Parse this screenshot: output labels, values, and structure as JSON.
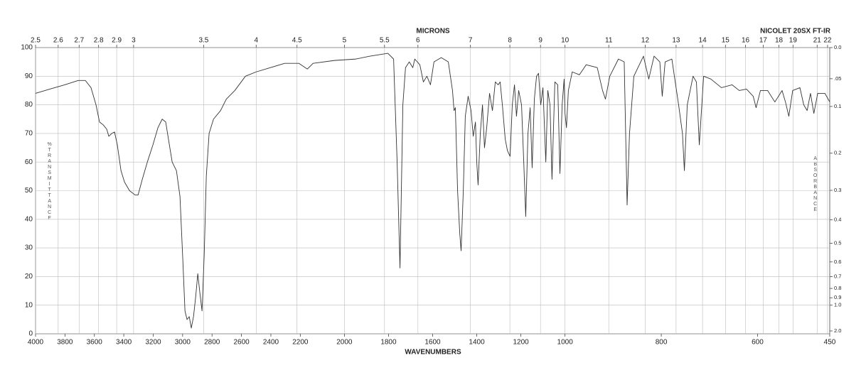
{
  "chart_data": {
    "type": "line",
    "top_label": "MICRONS",
    "x_label": "WAVENUMBERS",
    "instrument": "NICOLET 20SX FT-IR",
    "y_label": "%TRANSMITTANCE",
    "y2_label": "ABSORBANCE",
    "x_scale_breaks": [
      4000,
      2200,
      1000,
      450
    ],
    "xlim": [
      4000,
      450
    ],
    "xticks": [
      4000,
      3800,
      3600,
      3400,
      3200,
      3000,
      2800,
      2600,
      2400,
      2200,
      2000,
      1800,
      1600,
      1400,
      1200,
      1000,
      800,
      600,
      450
    ],
    "micron_ticks": [
      2.5,
      2.6,
      2.7,
      2.8,
      2.9,
      3,
      3.5,
      4,
      4.5,
      5,
      5.5,
      6,
      7,
      8,
      9,
      10,
      11,
      12,
      13,
      14,
      15,
      16,
      17,
      18,
      19,
      21,
      22
    ],
    "ylim": [
      0,
      100
    ],
    "yticks": [
      0,
      10,
      20,
      30,
      40,
      50,
      60,
      70,
      80,
      90,
      100
    ],
    "y2_scale": "absorbance",
    "y2ticks": [
      {
        "value": 0,
        "label": "0.0"
      },
      {
        "value": 0.05,
        "label": ".05"
      },
      0.1,
      0.2,
      0.3,
      0.4,
      0.5,
      0.6,
      0.7,
      0.8,
      0.9,
      {
        "value": 1,
        "label": "1.0"
      },
      {
        "value": 2,
        "label": "2.0"
      }
    ],
    "grid": true,
    "color": "#333333",
    "x": [
      4000,
      3903,
      3802,
      3710,
      3661,
      3623,
      3589,
      3565,
      3540,
      3516,
      3502,
      3482,
      3463,
      3444,
      3419,
      3395,
      3361,
      3323,
      3303,
      3274,
      3240,
      3202,
      3168,
      3139,
      3115,
      3090,
      3071,
      3042,
      3018,
      2998,
      2984,
      2970,
      2955,
      2941,
      2926,
      2911,
      2897,
      2882,
      2868,
      2853,
      2839,
      2820,
      2790,
      2742,
      2703,
      2645,
      2573,
      2500,
      2403,
      2306,
      2210,
      2168,
      2142,
      2045,
      1948,
      1884,
      1803,
      1777,
      1761,
      1748,
      1735,
      1723,
      1706,
      1690,
      1681,
      1658,
      1642,
      1626,
      1610,
      1594,
      1561,
      1529,
      1510,
      1503,
      1497,
      1487,
      1477,
      1471,
      1461,
      1452,
      1439,
      1426,
      1416,
      1406,
      1400,
      1394,
      1384,
      1374,
      1365,
      1355,
      1342,
      1329,
      1316,
      1303,
      1294,
      1284,
      1271,
      1261,
      1249,
      1239,
      1229,
      1220,
      1210,
      1197,
      1187,
      1178,
      1168,
      1158,
      1149,
      1139,
      1129,
      1120,
      1110,
      1100,
      1087,
      1078,
      1068,
      1059,
      1046,
      1033,
      1023,
      1013,
      1004,
      1000,
      997,
      993,
      985,
      970,
      956,
      933,
      922,
      916,
      907,
      889,
      877,
      871,
      866,
      857,
      837,
      826,
      815,
      803,
      798,
      792,
      778,
      764,
      756,
      752,
      746,
      734,
      727,
      721,
      712,
      697,
      675,
      653,
      638,
      623,
      609,
      603,
      594,
      579,
      564,
      549,
      542,
      535,
      527,
      512,
      504,
      497,
      490,
      483,
      475,
      460,
      450
    ],
    "values": [
      84,
      85.5,
      87,
      88.5,
      88.5,
      86,
      80,
      74,
      73,
      71.5,
      69,
      70,
      70.5,
      66,
      57,
      53,
      50,
      48.5,
      48.5,
      54,
      60,
      66,
      72,
      75,
      74,
      66,
      60,
      57,
      48,
      25,
      8,
      5,
      6,
      2,
      6,
      13,
      21,
      14,
      8,
      28,
      55,
      70,
      75,
      78,
      82,
      85,
      90,
      91.5,
      93,
      94.5,
      94.5,
      92.5,
      94.5,
      95.5,
      96,
      97,
      98,
      96,
      60,
      23,
      80,
      93,
      95,
      93,
      96,
      94,
      88,
      90,
      87,
      95,
      96.5,
      95,
      85,
      78,
      79,
      50,
      35,
      29,
      50,
      76,
      83,
      78,
      69,
      74,
      60,
      52,
      70,
      80,
      65,
      72,
      84,
      78,
      88,
      87,
      88,
      80,
      68,
      64,
      62,
      80,
      87,
      76,
      85,
      80,
      60,
      41,
      70,
      79,
      58,
      82,
      90,
      91,
      80,
      86,
      60,
      85,
      80,
      54,
      88,
      87,
      56,
      80,
      89,
      77,
      72,
      85,
      91.5,
      90.5,
      94,
      93,
      85,
      82,
      90,
      96,
      95,
      45,
      70,
      90,
      97,
      89,
      97,
      95,
      83,
      95,
      96,
      80,
      70,
      57,
      80,
      90,
      88,
      66,
      90,
      89,
      86,
      87,
      85,
      85.5,
      83,
      79,
      85,
      85,
      81,
      85,
      81,
      76,
      85,
      86,
      80,
      78,
      84,
      77,
      84,
      84,
      81
    ]
  }
}
